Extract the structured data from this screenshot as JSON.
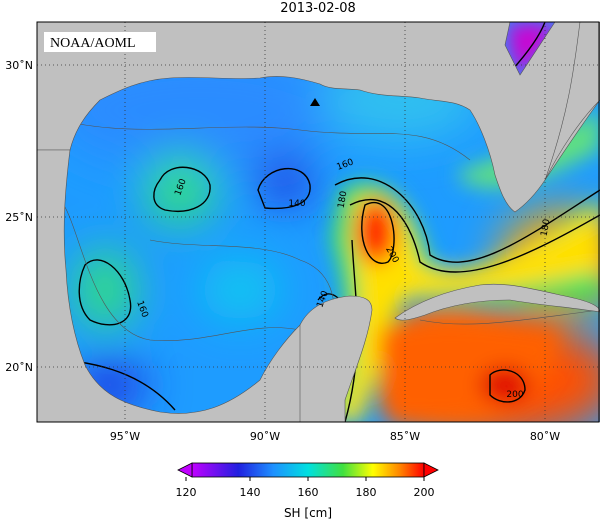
{
  "title": "2013-02-08",
  "credit": "NOAA/AOML",
  "lat_labels": [
    "30˚N",
    "25˚N",
    "20˚N"
  ],
  "lon_labels": [
    "95˚W",
    "90˚W",
    "85˚W",
    "80˚W"
  ],
  "contour_labels": [
    "160",
    "140",
    "160",
    "180",
    "200",
    "180",
    "140",
    "160",
    "200"
  ],
  "colorbar": {
    "ticks": [
      "120",
      "140",
      "160",
      "180",
      "200"
    ],
    "label": "SH [cm]"
  }
}
